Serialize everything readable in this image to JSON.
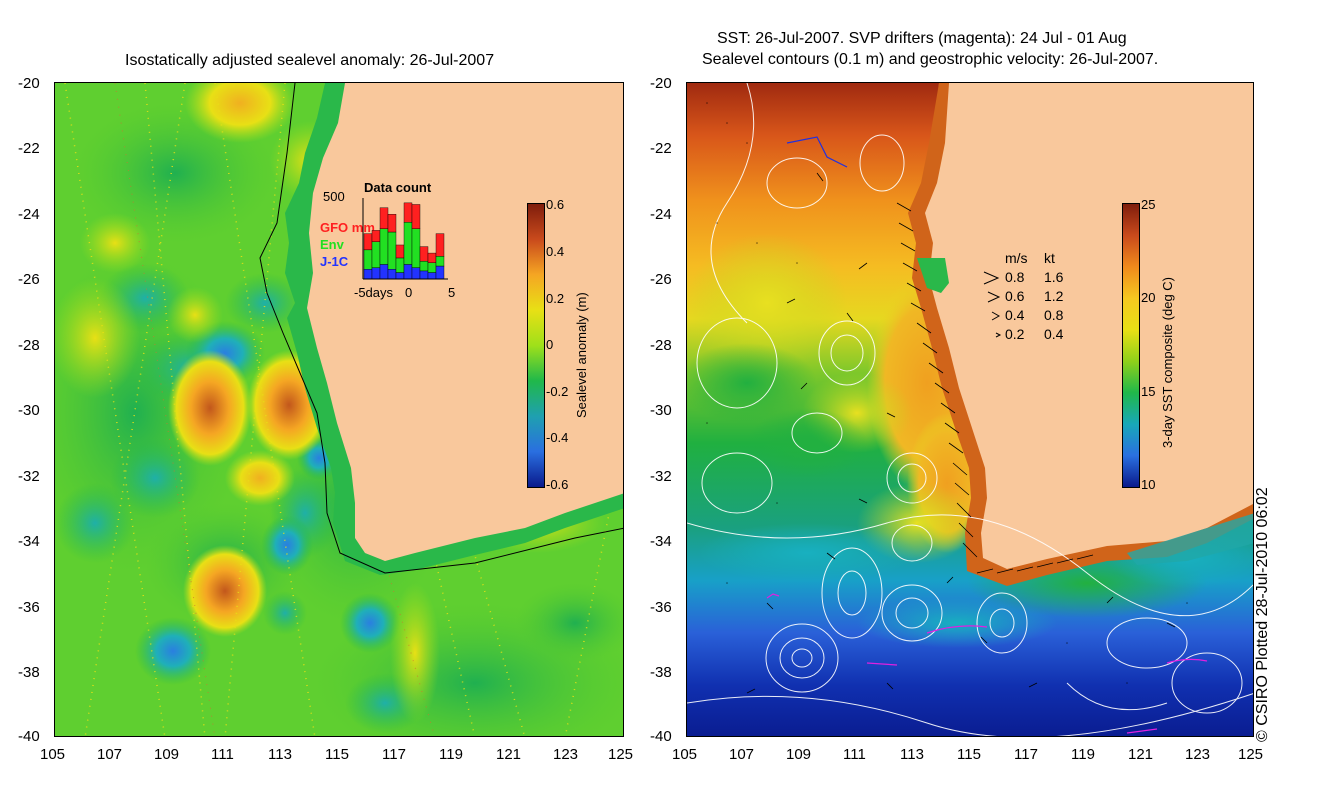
{
  "left_panel": {
    "title": "Isostatically adjusted sealevel anomaly: 26-Jul-2007",
    "y_ticks": [
      "-20",
      "-22",
      "-24",
      "-26",
      "-28",
      "-30",
      "-32",
      "-34",
      "-36",
      "-38",
      "-40"
    ],
    "x_ticks": [
      "105",
      "107",
      "109",
      "111",
      "113",
      "115",
      "117",
      "119",
      "121",
      "123",
      "125"
    ],
    "inset": {
      "title": "Data count",
      "y_max": "500",
      "legend": [
        {
          "label": "GFO mm",
          "color": "#ff2020"
        },
        {
          "label": "Env",
          "color": "#22e022"
        },
        {
          "label": "J-1C",
          "color": "#2233ff"
        }
      ],
      "x_left": "-5days",
      "x_mid": "0",
      "x_right": "5",
      "bars": [
        {
          "blue": 60,
          "green": 120,
          "red": 100
        },
        {
          "blue": 70,
          "green": 160,
          "red": 70
        },
        {
          "blue": 90,
          "green": 220,
          "red": 130
        },
        {
          "blue": 60,
          "green": 230,
          "red": 110
        },
        {
          "blue": 40,
          "green": 90,
          "red": 80
        },
        {
          "blue": 90,
          "green": 260,
          "red": 120
        },
        {
          "blue": 70,
          "green": 240,
          "red": 150
        },
        {
          "blue": 50,
          "green": 60,
          "red": 90
        },
        {
          "blue": 40,
          "green": 60,
          "red": 60
        },
        {
          "blue": 80,
          "green": 60,
          "red": 140
        }
      ]
    },
    "colorbar": {
      "label": "Sealevel anomaly (m)",
      "ticks": [
        "0.6",
        "0.4",
        "0.2",
        "0",
        "-0.2",
        "-0.4",
        "-0.6"
      ],
      "colors": [
        "#7f1d0c",
        "#c94a1c",
        "#f5a623",
        "#e8e015",
        "#9fe01a",
        "#20b84a",
        "#1fa0b0",
        "#2a6fe0",
        "#0a1a8c"
      ]
    }
  },
  "right_panel": {
    "title_line1": "SST: 26-Jul-2007. SVP drifters (magenta): 24 Jul - 01 Aug",
    "title_line2": "Sealevel contours (0.1 m) and geostrophic velocity: 26-Jul-2007.",
    "y_ticks": [
      "-20",
      "-22",
      "-24",
      "-26",
      "-28",
      "-30",
      "-32",
      "-34",
      "-36",
      "-38",
      "-40"
    ],
    "x_ticks": [
      "105",
      "107",
      "109",
      "111",
      "113",
      "115",
      "117",
      "119",
      "121",
      "123",
      "125"
    ],
    "velocity_legend": {
      "header_ms": "m/s",
      "header_kt": "kt",
      "rows": [
        {
          "ms": "0.8",
          "kt": "1.6"
        },
        {
          "ms": "0.6",
          "kt": "1.2"
        },
        {
          "ms": "0.4",
          "kt": "0.8"
        },
        {
          "ms": "0.2",
          "kt": "0.4"
        }
      ]
    },
    "colorbar": {
      "label": "3-day SST composite (deg C)",
      "ticks": [
        "25",
        "20",
        "15",
        "10"
      ],
      "colors": [
        "#7f1d0c",
        "#c94a1c",
        "#f08a1c",
        "#f5c820",
        "#e8e015",
        "#8fd01a",
        "#20b84a",
        "#18a8b8",
        "#2a70e0",
        "#0a1a8c"
      ]
    }
  },
  "credit": "© CSIRO Plotted 28-Jul-2010 06:02",
  "colors": {
    "land": "#f9c89c",
    "coast_green": "#2ab84a"
  }
}
